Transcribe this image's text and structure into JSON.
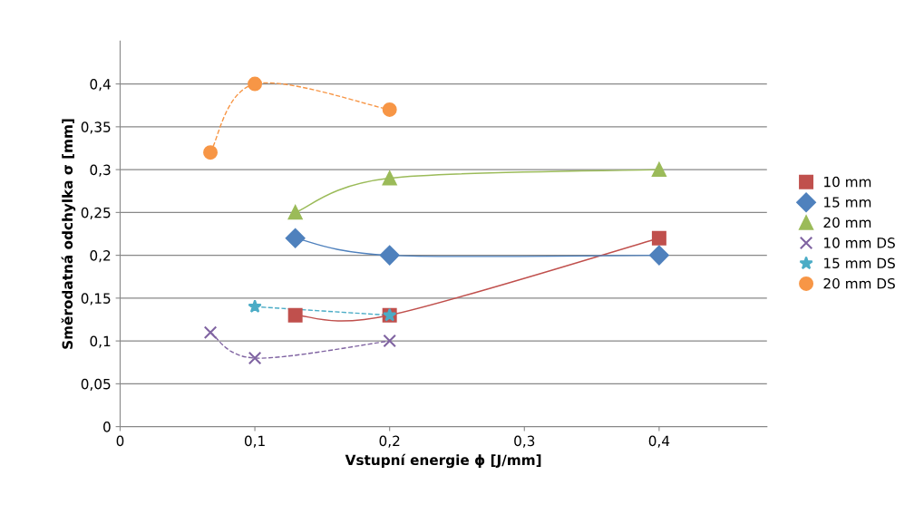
{
  "chart_data": {
    "type": "line",
    "xlabel": "Vstupní energie ϕ [J/mm]",
    "ylabel": "Směrodatná odchylka σ [mm]",
    "xlim": [
      0,
      0.48
    ],
    "xticks": [
      0,
      {
        "value": 0.1,
        "label": "0,1"
      },
      {
        "value": 0.2,
        "label": "0,2"
      },
      {
        "value": 0.3,
        "label": "0,3"
      },
      {
        "value": 0.4,
        "label": "0,4"
      }
    ],
    "ylim": [
      0,
      0.45
    ],
    "yticks": [
      0,
      {
        "value": 0.05,
        "label": "0,05"
      },
      {
        "value": 0.1,
        "label": "0,1"
      },
      {
        "value": 0.15,
        "label": "0,15"
      },
      {
        "value": 0.2,
        "label": "0,2"
      },
      {
        "value": 0.25,
        "label": "0,25"
      },
      {
        "value": 0.3,
        "label": "0,3"
      },
      {
        "value": 0.35,
        "label": "0,35"
      },
      {
        "value": 0.4,
        "label": "0,4"
      }
    ],
    "grid": "y",
    "legend": "right",
    "series": [
      {
        "name": "10 mm",
        "color": "#c0504d",
        "marker": "square",
        "line_style": "solid",
        "x": [
          0.13,
          0.2,
          0.4
        ],
        "values": [
          0.13,
          0.13,
          0.22
        ]
      },
      {
        "name": "15 mm",
        "color": "#4f81bd",
        "marker": "diamond",
        "line_style": "solid",
        "x": [
          0.13,
          0.2,
          0.4
        ],
        "values": [
          0.22,
          0.2,
          0.2
        ]
      },
      {
        "name": "20 mm",
        "color": "#9bbb59",
        "marker": "triangle",
        "line_style": "solid",
        "x": [
          0.13,
          0.2,
          0.4
        ],
        "values": [
          0.25,
          0.29,
          0.3
        ]
      },
      {
        "name": "10 mm DS",
        "color": "#8064a2",
        "marker": "cross",
        "line_style": "dashed",
        "x": [
          0.067,
          0.1,
          0.2
        ],
        "values": [
          0.11,
          0.08,
          0.1
        ]
      },
      {
        "name": "15 mm DS",
        "color": "#4bacc6",
        "marker": "star",
        "line_style": "dashed",
        "x": [
          0.1,
          0.2
        ],
        "values": [
          0.14,
          0.13
        ]
      },
      {
        "name": "20 mm DS",
        "color": "#f79646",
        "marker": "circle",
        "line_style": "dashed",
        "x": [
          0.067,
          0.1,
          0.2
        ],
        "values": [
          0.32,
          0.4,
          0.37
        ]
      }
    ]
  }
}
